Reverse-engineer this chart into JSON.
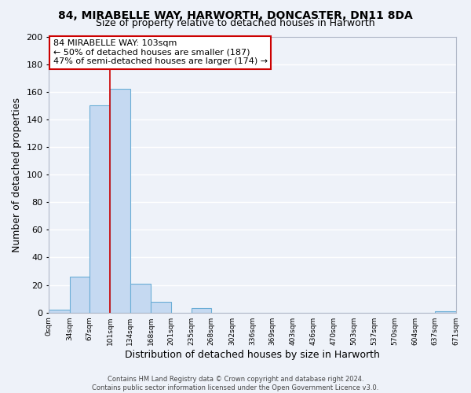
{
  "title": "84, MIRABELLE WAY, HARWORTH, DONCASTER, DN11 8DA",
  "subtitle": "Size of property relative to detached houses in Harworth",
  "xlabel": "Distribution of detached houses by size in Harworth",
  "ylabel": "Number of detached properties",
  "bin_edges": [
    0,
    34,
    67,
    101,
    134,
    168,
    201,
    235,
    268,
    302,
    336,
    369,
    403,
    436,
    470,
    503,
    537,
    570,
    604,
    637,
    671
  ],
  "bin_labels": [
    "0sqm",
    "34sqm",
    "67sqm",
    "101sqm",
    "134sqm",
    "168sqm",
    "201sqm",
    "235sqm",
    "268sqm",
    "302sqm",
    "336sqm",
    "369sqm",
    "403sqm",
    "436sqm",
    "470sqm",
    "503sqm",
    "537sqm",
    "570sqm",
    "604sqm",
    "637sqm",
    "671sqm"
  ],
  "counts": [
    2,
    26,
    150,
    162,
    21,
    8,
    0,
    3,
    0,
    0,
    0,
    0,
    0,
    0,
    0,
    0,
    0,
    0,
    0,
    1
  ],
  "bar_color": "#c5d9f1",
  "bar_edge_color": "#6baed6",
  "vline_x": 101,
  "vline_color": "#cc0000",
  "annotation_title": "84 MIRABELLE WAY: 103sqm",
  "annotation_line1": "← 50% of detached houses are smaller (187)",
  "annotation_line2": "47% of semi-detached houses are larger (174) →",
  "annotation_box_facecolor": "#ffffff",
  "annotation_box_edgecolor": "#cc0000",
  "ylim": [
    0,
    200
  ],
  "yticks": [
    0,
    20,
    40,
    60,
    80,
    100,
    120,
    140,
    160,
    180,
    200
  ],
  "footer1": "Contains HM Land Registry data © Crown copyright and database right 2024.",
  "footer2": "Contains public sector information licensed under the Open Government Licence v3.0.",
  "bg_color": "#eef2f9",
  "grid_color": "#ffffff",
  "title_fontsize": 10,
  "subtitle_fontsize": 9
}
